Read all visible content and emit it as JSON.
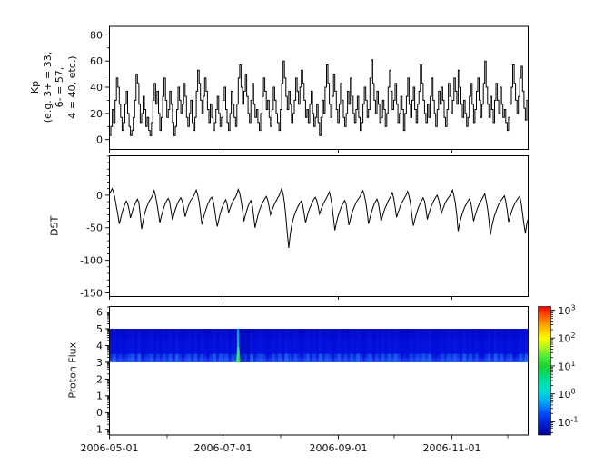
{
  "figure": {
    "background": "#ffffff",
    "axis_color": "#000000",
    "text_color": "#111111"
  },
  "x_axis": {
    "total_days": 225,
    "major_ticks": [
      {
        "day": 0,
        "label": "2006-05-01"
      },
      {
        "day": 61,
        "label": "2006-07-01"
      },
      {
        "day": 123,
        "label": "2006-09-01"
      },
      {
        "day": 184,
        "label": "2006-11-01"
      }
    ],
    "minor_tick_days": [
      31,
      92,
      153,
      214
    ]
  },
  "chart_data": [
    {
      "type": "line",
      "style": "step",
      "name": "kp-index",
      "ylabel_lines": [
        "Kp",
        "(e.g. 3+ = 33,",
        "6- = 57,",
        "4 = 40, etc.)"
      ],
      "ylim": [
        -7.5,
        86.5
      ],
      "yticks": [
        0,
        20,
        40,
        60,
        80
      ],
      "yminor_step": 10,
      "line_color": "#000000",
      "values": [
        3,
        10,
        23,
        13,
        30,
        47,
        40,
        27,
        17,
        7,
        13,
        27,
        37,
        20,
        10,
        3,
        7,
        17,
        30,
        50,
        43,
        27,
        13,
        20,
        33,
        23,
        10,
        17,
        7,
        3,
        13,
        30,
        43,
        27,
        37,
        20,
        7,
        17,
        33,
        47,
        30,
        17,
        23,
        37,
        27,
        13,
        3,
        10,
        23,
        40,
        30,
        20,
        27,
        43,
        33,
        17,
        10,
        20,
        30,
        13,
        7,
        17,
        37,
        53,
        43,
        30,
        20,
        33,
        47,
        37,
        23,
        13,
        27,
        17,
        7,
        13,
        23,
        33,
        20,
        10,
        17,
        30,
        40,
        23,
        13,
        7,
        20,
        37,
        27,
        17,
        10,
        27,
        47,
        57,
        40,
        27,
        37,
        50,
        33,
        20,
        13,
        30,
        43,
        27,
        17,
        23,
        13,
        7,
        20,
        33,
        47,
        37,
        23,
        30,
        17,
        10,
        23,
        40,
        30,
        20,
        13,
        7,
        23,
        43,
        60,
        47,
        33,
        23,
        37,
        27,
        13,
        20,
        30,
        47,
        37,
        27,
        40,
        53,
        43,
        30,
        17,
        23,
        13,
        27,
        37,
        20,
        10,
        17,
        27,
        13,
        3,
        17,
        30,
        20,
        40,
        57,
        43,
        27,
        17,
        33,
        50,
        37,
        23,
        13,
        27,
        43,
        30,
        17,
        10,
        20,
        37,
        27,
        47,
        33,
        20,
        13,
        23,
        33,
        17,
        7,
        13,
        27,
        40,
        30,
        17,
        23,
        47,
        61,
        43,
        30,
        20,
        37,
        27,
        13,
        17,
        30,
        23,
        10,
        20,
        40,
        53,
        37,
        23,
        30,
        43,
        27,
        13,
        20,
        33,
        23,
        7,
        20,
        33,
        47,
        27,
        17,
        30,
        40,
        23,
        13,
        27,
        37,
        57,
        43,
        30,
        20,
        13,
        27,
        17,
        33,
        47,
        30,
        20,
        10,
        23,
        37,
        27,
        40,
        30,
        17,
        10,
        23,
        43,
        33,
        20,
        30,
        47,
        37,
        27,
        53,
        40,
        27,
        17,
        30,
        20,
        10,
        17,
        33,
        43,
        27,
        13,
        23,
        37,
        47,
        30,
        17,
        27,
        43,
        60,
        40,
        27,
        17,
        33,
        23,
        13,
        30,
        43,
        30,
        20,
        40,
        27,
        17,
        23,
        13,
        7,
        17,
        27,
        40,
        57,
        43,
        30,
        20,
        33,
        47,
        56,
        37,
        24,
        15,
        30,
        8
      ]
    },
    {
      "type": "line",
      "style": "linear",
      "name": "dst-index",
      "ylabel": "DST",
      "ylim": [
        -155.5,
        60.5
      ],
      "yticks": [
        0,
        -50,
        -100,
        -150
      ],
      "yminor_step": 10,
      "line_color": "#000000",
      "values": [
        2,
        6,
        10,
        4,
        -6,
        -18,
        -30,
        -44,
        -36,
        -27,
        -20,
        -14,
        -9,
        -13,
        -22,
        -35,
        -28,
        -20,
        -15,
        -10,
        -6,
        -12,
        -30,
        -52,
        -40,
        -30,
        -22,
        -16,
        -11,
        -7,
        -4,
        1,
        7,
        -2,
        -14,
        -28,
        -42,
        -33,
        -25,
        -18,
        -12,
        -8,
        -5,
        -10,
        -24,
        -38,
        -30,
        -22,
        -16,
        -11,
        -7,
        -4,
        -9,
        -19,
        -33,
        -26,
        -19,
        -13,
        -8,
        -5,
        -2,
        3,
        8,
        1,
        -10,
        -26,
        -45,
        -36,
        -28,
        -21,
        -15,
        -10,
        -6,
        -3,
        -8,
        -20,
        -36,
        -48,
        -38,
        -29,
        -22,
        -16,
        -11,
        -7,
        -13,
        -27,
        -21,
        -15,
        -10,
        -6,
        -3,
        2,
        9,
        3,
        -8,
        -22,
        -40,
        -31,
        -24,
        -17,
        -12,
        -8,
        -16,
        -32,
        -50,
        -40,
        -31,
        -24,
        -18,
        -13,
        -9,
        -5,
        -2,
        -7,
        -18,
        -30,
        -24,
        -18,
        -13,
        -9,
        -5,
        -1,
        4,
        10,
        2,
        -12,
        -34,
        -58,
        -81,
        -62,
        -48,
        -38,
        -31,
        -25,
        -20,
        -16,
        -12,
        -9,
        -15,
        -28,
        -42,
        -34,
        -26,
        -20,
        -15,
        -10,
        -6,
        -3,
        -8,
        -17,
        -29,
        -23,
        -17,
        -12,
        -8,
        -4,
        0,
        5,
        -4,
        -16,
        -36,
        -54,
        -43,
        -34,
        -27,
        -21,
        -16,
        -12,
        -8,
        -14,
        -30,
        -46,
        -37,
        -29,
        -22,
        -17,
        -12,
        -8,
        -5,
        -2,
        3,
        7,
        0,
        -11,
        -25,
        -44,
        -35,
        -27,
        -20,
        -14,
        -10,
        -6,
        -12,
        -26,
        -40,
        -32,
        -25,
        -19,
        -14,
        -9,
        -5,
        -1,
        4,
        -5,
        -18,
        -34,
        -27,
        -21,
        -15,
        -11,
        -7,
        -3,
        1,
        6,
        -2,
        -13,
        -31,
        -47,
        -38,
        -30,
        -23,
        -17,
        -12,
        -8,
        -4,
        -9,
        -21,
        -37,
        -29,
        -22,
        -16,
        -11,
        -7,
        -3,
        0,
        -6,
        -16,
        -28,
        -22,
        -16,
        -11,
        -7,
        -4,
        -1,
        3,
        8,
        -1,
        -12,
        -30,
        -55,
        -44,
        -35,
        -28,
        -22,
        -17,
        -13,
        -9,
        -6,
        -11,
        -24,
        -40,
        -32,
        -25,
        -19,
        -14,
        -10,
        -6,
        -2,
        2,
        -8,
        -20,
        -38,
        -61,
        -49,
        -39,
        -31,
        -25,
        -19,
        -14,
        -10,
        -7,
        -4,
        -1,
        -9,
        -23,
        -41,
        -33,
        -26,
        -20,
        -15,
        -11,
        -7,
        -4,
        -2,
        -12,
        -28,
        -45,
        -58,
        -44,
        -36
      ]
    },
    {
      "type": "heatmap",
      "name": "proton-flux-spectrogram",
      "ylabel": "Proton Flux",
      "ylim": [
        -1.34,
        6.33
      ],
      "yticks": [
        -1,
        0,
        1,
        2,
        3,
        4,
        5,
        6
      ],
      "yminor_scale": "log",
      "band": {
        "y_top": 5,
        "y_bottom": 3,
        "base_top_color": "#0006c6",
        "base_mid_color": "#000edd",
        "base_bottom_color": "#2644ff",
        "stripe_color": "#3858ff",
        "lower_glow_color": "#30a8ff",
        "column_intensities": "37251468290347152638194057281630492857164038291574026381952730481629375048162739405816273849502163748591026374851937261048293715602849"
      },
      "streak": {
        "day": 69,
        "top_color": "#0a9cf0",
        "mid_color": "#00cfc0",
        "bottom_color": "#35e868"
      },
      "dark_patch": {
        "day_start": 70.2,
        "day_end": 75.5,
        "color": "#0006b0",
        "opacity": 0.4
      },
      "colorbar": {
        "scale": "log",
        "tick_exponents": [
          "3",
          "2",
          "1",
          "0",
          "-1"
        ],
        "mantissa_label": "10",
        "log_top": 3.13,
        "log_bottom": -1.475,
        "gradient": [
          [
            0,
            "#ef0500"
          ],
          [
            0.05,
            "#ff3d00"
          ],
          [
            0.12,
            "#ff8c00"
          ],
          [
            0.2,
            "#ffd800"
          ],
          [
            0.25,
            "#fdfd00"
          ],
          [
            0.32,
            "#aef522"
          ],
          [
            0.4,
            "#46e83c"
          ],
          [
            0.46,
            "#22d228"
          ],
          [
            0.54,
            "#00dc7a"
          ],
          [
            0.62,
            "#00e0c0"
          ],
          [
            0.67,
            "#00d8d8"
          ],
          [
            0.75,
            "#00a2f8"
          ],
          [
            0.82,
            "#0054ff"
          ],
          [
            0.89,
            "#0028e0"
          ],
          [
            1,
            "#000090"
          ]
        ]
      }
    }
  ]
}
